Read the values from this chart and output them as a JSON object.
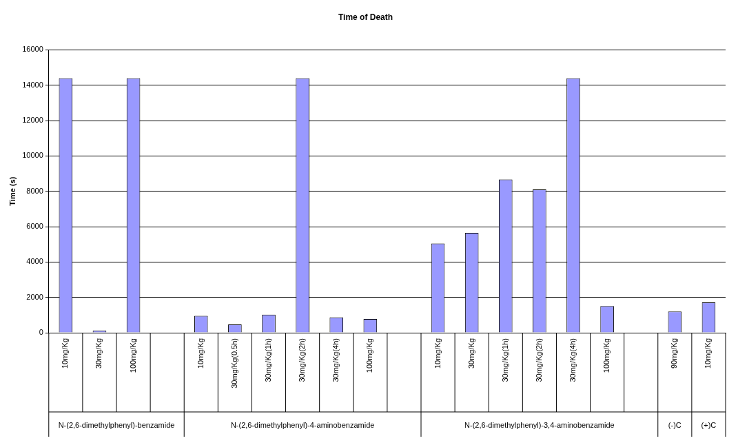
{
  "chart_data": {
    "type": "bar",
    "title": "Time of Death",
    "ylabel": "Time (s)",
    "categories": [
      "10mg/Kg",
      "30mg/Kg",
      "100mg/Kg",
      null,
      "10mg/Kg",
      "30mg/Kg(0.5h)",
      "30mg/Kg(1h)",
      "30mg/Kg(2h)",
      "30mg/Kg(4h)",
      "100mg/Kg",
      null,
      "10mg/Kg",
      "30mg/Kg",
      "30mg/Kg(1h)",
      "30mg/Kg(2h)",
      "30mg/Kg(4h)",
      "100mg/Kg",
      null,
      "90mg/Kg",
      "10mg/Kg"
    ],
    "values": [
      14400,
      125,
      14400,
      null,
      950,
      470,
      1020,
      14400,
      865,
      780,
      null,
      5050,
      5650,
      8670,
      8110,
      14400,
      1510,
      null,
      1200,
      1710
    ],
    "color": "#9999ff",
    "ylim": [
      0,
      16000
    ],
    "yticks": [
      0,
      2000,
      4000,
      6000,
      8000,
      10000,
      12000,
      14000,
      16000
    ],
    "grid": "y",
    "annotations": [
      "N-(2,6-dimethylphenyl)-benzamide",
      "N-(2,6-dimethylphenyl)-4-aminobenzamide",
      "N-(2,6-dimethylphenyl)-3,4-aminobenzamide",
      "(-)C",
      "(+)C"
    ]
  }
}
